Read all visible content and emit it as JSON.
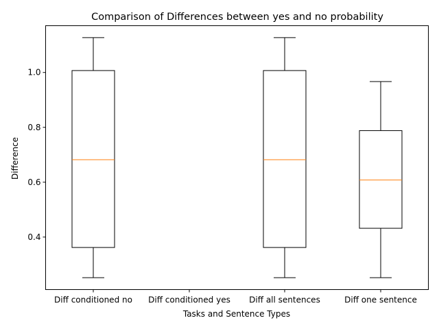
{
  "chart_data": {
    "type": "box",
    "title": "Comparison of Differences between yes and no probability",
    "xlabel": "Tasks and Sentence Types",
    "ylabel": "Difference",
    "ylim": [
      0.2085,
      1.1705
    ],
    "yticks": [
      0.4,
      0.6,
      0.8,
      1.0
    ],
    "ytick_labels": [
      "0.4",
      "0.6",
      "0.8",
      "1.0"
    ],
    "grid": false,
    "categories": [
      "Diff conditioned no",
      "Diff conditioned yes",
      "Diff all sentences",
      "Diff one sentence"
    ],
    "boxes": [
      {
        "category": "Diff conditioned no",
        "whisker_low": 0.252,
        "q1": 0.362,
        "median": 0.682,
        "q3": 1.007,
        "whisker_high": 1.127
      },
      {
        "category": "Diff conditioned yes"
      },
      {
        "category": "Diff all sentences",
        "whisker_low": 0.252,
        "q1": 0.362,
        "median": 0.682,
        "q3": 1.007,
        "whisker_high": 1.127
      },
      {
        "category": "Diff one sentence",
        "whisker_low": 0.252,
        "q1": 0.432,
        "median": 0.608,
        "q3": 0.788,
        "whisker_high": 0.967
      }
    ],
    "colors": {
      "box": "#000000",
      "median": "#ff7f0e"
    }
  }
}
